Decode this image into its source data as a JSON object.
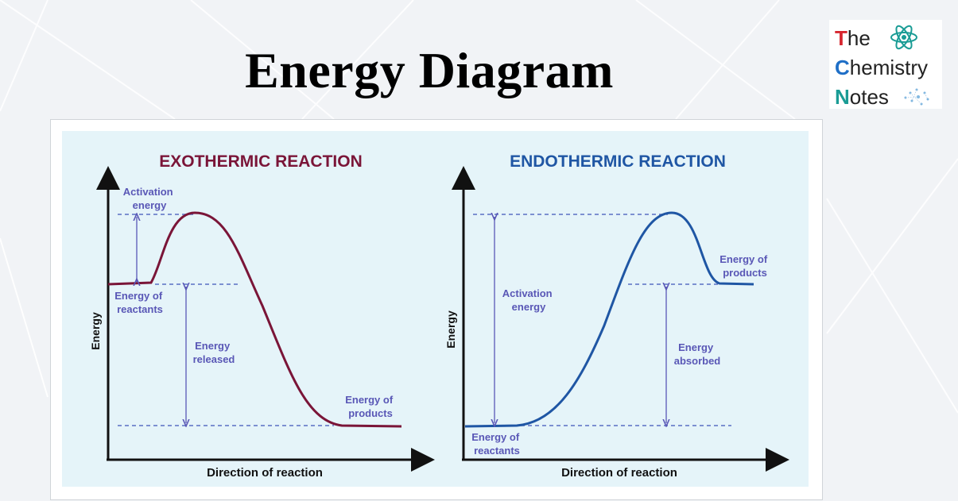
{
  "title": "Energy Diagram",
  "logo": {
    "line1_first": "T",
    "line1_rest": "he",
    "line2_first": "C",
    "line2_rest": "hemistry",
    "line3_first": "N",
    "line3_rest": "otes"
  },
  "colors": {
    "exo": "#7a1538",
    "endo": "#1f56a4",
    "annotation": "#5957b6",
    "dashed": "#5a6fc4",
    "axis": "#111111",
    "logo_red": "#d6262f",
    "logo_blue": "#1f6fc7",
    "logo_teal": "#1a9c95"
  },
  "exothermic": {
    "title": "EXOTHERMIC REACTION",
    "y_axis": "Energy",
    "x_axis": "Direction of reaction",
    "activation_energy": [
      "Activation",
      "energy"
    ],
    "energy_of_reactants": [
      "Energy of",
      "reactants"
    ],
    "energy_released": [
      "Energy",
      "released"
    ],
    "energy_of_products": [
      "Energy of",
      "products"
    ]
  },
  "endothermic": {
    "title": "ENDOTHERMIC REACTION",
    "y_axis": "Energy",
    "x_axis": "Direction of reaction",
    "activation_energy": [
      "Activation",
      "energy"
    ],
    "energy_of_reactants": [
      "Energy of",
      "reactants"
    ],
    "energy_absorbed": [
      "Energy",
      "absorbed"
    ],
    "energy_of_products": [
      "Energy of",
      "products"
    ]
  }
}
